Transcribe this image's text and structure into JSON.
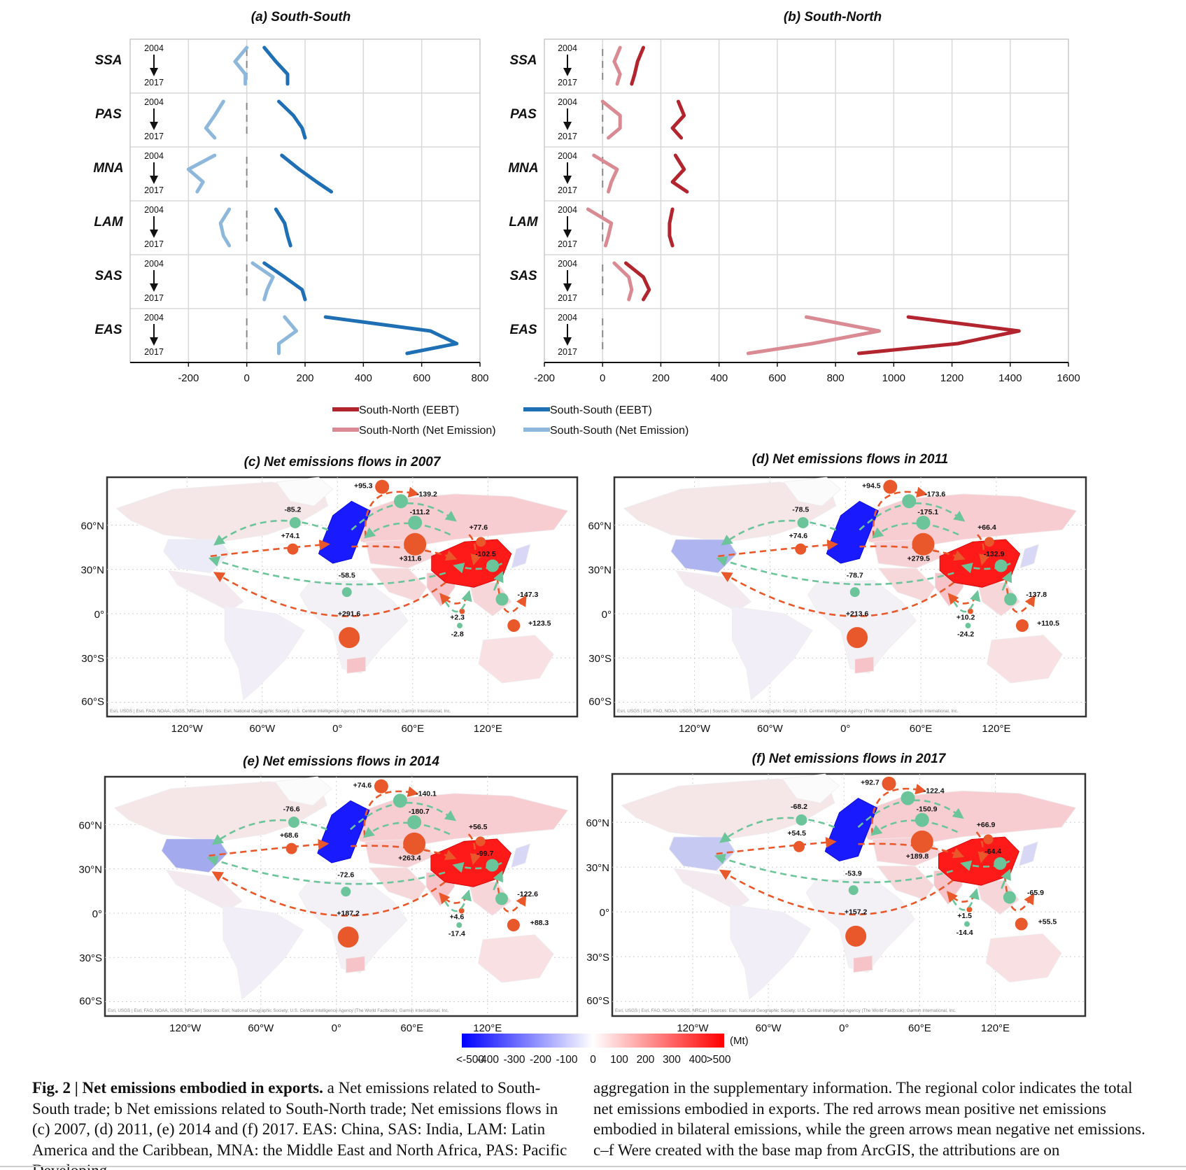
{
  "colors": {
    "ss_eebt": "#1f6fb5",
    "ss_net": "#8db8dc",
    "sn_eebt": "#b2242e",
    "sn_net": "#d98a92",
    "pos_flow": "#e8582a",
    "neg_flow": "#6cc59a",
    "eu_blue": "#1a1aff",
    "china_red": "#ff1a1a"
  },
  "line_panels": [
    {
      "title": "(a) South-South",
      "xlim": [
        -400,
        800
      ],
      "xticks": [
        "-200",
        "0",
        "200",
        "400",
        "600",
        "800"
      ],
      "year_start": "2004",
      "year_end": "2017",
      "rows": [
        {
          "region": "SSA",
          "net": [
            0,
            -40,
            -5,
            -5
          ],
          "eebt": [
            60,
            100,
            140,
            140
          ]
        },
        {
          "region": "PAS",
          "net": [
            -80,
            -110,
            -140,
            -110
          ],
          "eebt": [
            110,
            160,
            190,
            200
          ]
        },
        {
          "region": "MNA",
          "net": [
            -110,
            -200,
            -150,
            -170
          ],
          "eebt": [
            120,
            180,
            240,
            290
          ]
        },
        {
          "region": "LAM",
          "net": [
            -60,
            -90,
            -80,
            -60
          ],
          "eebt": [
            100,
            130,
            140,
            150
          ]
        },
        {
          "region": "SAS",
          "net": [
            20,
            90,
            70,
            60
          ],
          "eebt": [
            60,
            130,
            190,
            200
          ]
        },
        {
          "region": "EAS",
          "net": [
            130,
            170,
            110,
            110
          ],
          "eebt": [
            270,
            630,
            720,
            550
          ]
        }
      ]
    },
    {
      "title": "(b) South-North",
      "xlim": [
        -200,
        1600
      ],
      "xticks": [
        "-200",
        "0",
        "200",
        "400",
        "600",
        "800",
        "1000",
        "1200",
        "1400",
        "1600"
      ],
      "year_start": "2004",
      "year_end": "2017",
      "rows": [
        {
          "region": "SSA",
          "net": [
            60,
            40,
            60,
            50
          ],
          "eebt": [
            140,
            120,
            110,
            100
          ]
        },
        {
          "region": "PAS",
          "net": [
            0,
            60,
            60,
            20
          ],
          "eebt": [
            260,
            280,
            240,
            270
          ]
        },
        {
          "region": "MNA",
          "net": [
            -30,
            50,
            30,
            20
          ],
          "eebt": [
            250,
            280,
            240,
            290
          ]
        },
        {
          "region": "LAM",
          "net": [
            -50,
            30,
            20,
            10
          ],
          "eebt": [
            240,
            230,
            230,
            240
          ]
        },
        {
          "region": "SAS",
          "net": [
            40,
            90,
            100,
            90
          ],
          "eebt": [
            80,
            140,
            160,
            140
          ]
        },
        {
          "region": "EAS",
          "net": [
            700,
            950,
            720,
            500
          ],
          "eebt": [
            1050,
            1430,
            1220,
            880
          ]
        }
      ]
    }
  ],
  "legend": [
    {
      "label": "South-North (EEBT)",
      "color": "#b2242e"
    },
    {
      "label": "South-South (EEBT)",
      "color": "#1f6fb5"
    },
    {
      "label": "South-North (Net Emission)",
      "color": "#d98a92"
    },
    {
      "label": "South-South (Net Emission)",
      "color": "#8db8dc"
    }
  ],
  "maps": [
    {
      "title": "(c) Net emissions flows in 2007",
      "usa_shade": "#ececf8",
      "labels": {
        "rus_pos": "+95.3",
        "rus_neg": "-139.2",
        "cas_neg": "-111.2",
        "mna": "+311.6",
        "pas_pos": "+77.6",
        "pas_neg": "-102.5",
        "usa_eu_neg": "-85.2",
        "usa_eu_pos": "+74.1",
        "lam_neg": "-58.5",
        "ssa": "+291.6",
        "sea_pos": "+123.5",
        "sea_neg": "-147.3",
        "sas_pos": "+2.3",
        "sas_neg": "-2.8"
      }
    },
    {
      "title": "(d) Net emissions flows in 2011",
      "usa_shade": "#aeb4f0",
      "labels": {
        "rus_pos": "+94.5",
        "rus_neg": "-173.6",
        "cas_neg": "-175.1",
        "mna": "+279.5",
        "pas_pos": "+66.4",
        "pas_neg": "-132.9",
        "usa_eu_neg": "-78.5",
        "usa_eu_pos": "+74.6",
        "lam_neg": "-78.7",
        "ssa": "+213.6",
        "sea_pos": "+110.5",
        "sea_neg": "-137.8",
        "sas_pos": "+10.2",
        "sas_neg": "-24.2"
      }
    },
    {
      "title": "(e) Net emissions flows in 2014",
      "usa_shade": "#a4aaee",
      "labels": {
        "rus_pos": "+74.6",
        "rus_neg": "-140.1",
        "cas_neg": "-180.7",
        "mna": "+263.4",
        "pas_pos": "+56.5",
        "pas_neg": "-99.7",
        "usa_eu_neg": "-76.6",
        "usa_eu_pos": "+68.6",
        "lam_neg": "-72.6",
        "ssa": "+187.2",
        "sea_pos": "+88.3",
        "sea_neg": "-122.6",
        "sas_pos": "+4.6",
        "sas_neg": "-17.4"
      }
    },
    {
      "title": "(f) Net emissions flows in 2017",
      "usa_shade": "#c6caf3",
      "labels": {
        "rus_pos": "+92.7",
        "rus_neg": "-122.4",
        "cas_neg": "-150.9",
        "mna": "+189.8",
        "pas_pos": "+66.9",
        "pas_neg": "-64.4",
        "usa_eu_neg": "-68.2",
        "usa_eu_pos": "+54.5",
        "lam_neg": "-53.9",
        "ssa": "+157.2",
        "sea_pos": "+55.5",
        "sea_neg": "-65.9",
        "sas_pos": "+1.5",
        "sas_neg": "-14.4"
      }
    }
  ],
  "map_axes": {
    "lat": [
      "60°N",
      "30°N",
      "0°",
      "30°S",
      "60°S"
    ],
    "lon": [
      "120°W",
      "60°W",
      "0°",
      "60°E",
      "120°E"
    ],
    "attribution": "Esri, USGS | Esri, FAO, NOAA, USGS, NRCan | Sources: Esri; National Geographic Society; U.S. Central Intelligence Agency (The World Factbook); Garmin International, Inc."
  },
  "colorbar": {
    "ticks": [
      "<-500",
      "-400",
      "-300",
      "-200",
      "-100",
      "0",
      "100",
      "200",
      "300",
      "400",
      ">500"
    ],
    "unit": "(Mt)"
  },
  "caption": {
    "fig_label": "Fig. 2 | Net emissions embodied in exports.",
    "left_text": " a Net emissions related to South-South trade; b Net emissions related to South-North trade; Net emissions flows in (c) 2007, (d) 2011, (e) 2014 and (f) 2017. EAS: China, SAS: India, LAM: Latin America and the Caribbean, MNA: the Middle East and North Africa, PAS: Pacific Developing",
    "right_text": "aggregation in the supplementary information. The regional color indicates the total net emissions embodied in exports. The red arrows mean positive net emissions embodied in bilateral emissions, while the green arrows mean negative net emissions. c–f Were created with the base map from ArcGIS, the attributions are on"
  }
}
